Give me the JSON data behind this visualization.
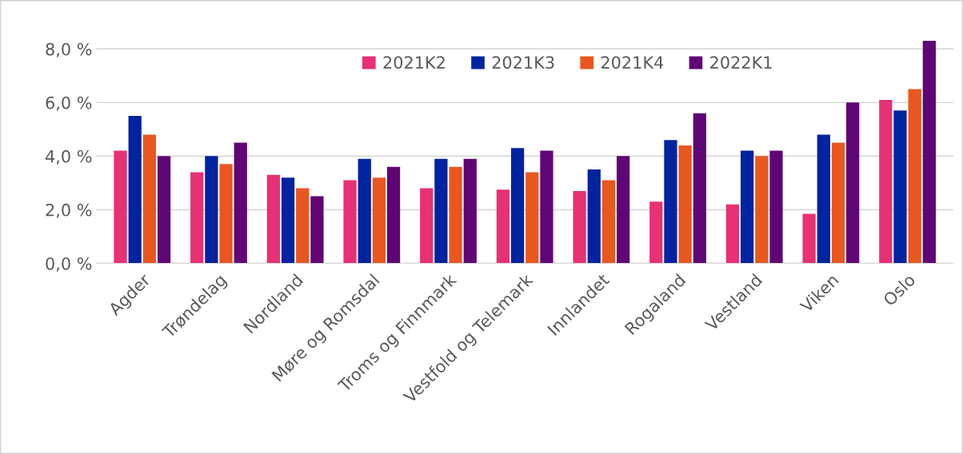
{
  "chart_data": {
    "type": "bar",
    "categories": [
      "Agder",
      "Trøndelag",
      "Nordland",
      "Møre og Romsdal",
      "Troms og Finnmark",
      "Vestfold og Telemark",
      "Innlandet",
      "Rogaland",
      "Vestland",
      "Viken",
      "Oslo"
    ],
    "series": [
      {
        "name": "2021K2",
        "color": "#e83075",
        "values": [
          4.2,
          3.4,
          3.3,
          3.1,
          2.8,
          2.75,
          2.7,
          2.3,
          2.2,
          1.85,
          6.1
        ]
      },
      {
        "name": "2021K3",
        "color": "#0023a0",
        "values": [
          5.5,
          4.0,
          3.2,
          3.9,
          3.9,
          4.3,
          3.5,
          4.6,
          4.2,
          4.8,
          5.7
        ]
      },
      {
        "name": "2021K4",
        "color": "#e9571f",
        "values": [
          4.8,
          3.7,
          2.8,
          3.2,
          3.6,
          3.4,
          3.1,
          4.4,
          4.0,
          4.5,
          6.5
        ]
      },
      {
        "name": "2022K1",
        "color": "#600575",
        "values": [
          4.0,
          4.5,
          2.5,
          3.6,
          3.9,
          4.2,
          4.0,
          5.6,
          4.2,
          6.0,
          8.3
        ]
      }
    ],
    "ylim": [
      0,
      8.3
    ],
    "yticks": [
      {
        "value": 0,
        "label": "0,0 %"
      },
      {
        "value": 2,
        "label": "2,0 %"
      },
      {
        "value": 4,
        "label": "4,0 %"
      },
      {
        "value": 6,
        "label": "6,0 %"
      },
      {
        "value": 8,
        "label": "8,0 %"
      }
    ],
    "grid": "y",
    "legend": "top"
  }
}
